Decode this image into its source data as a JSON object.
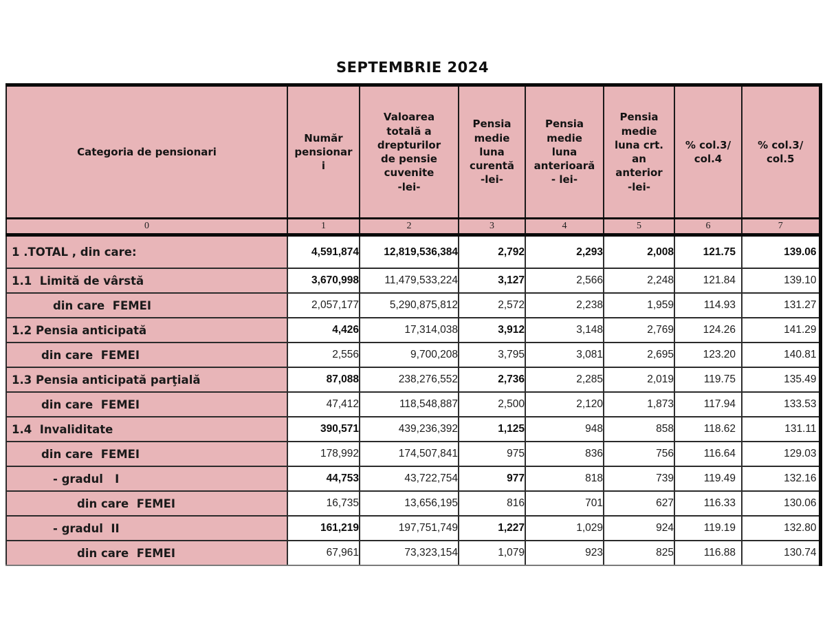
{
  "title": "SEPTEMBRIE 2024",
  "colors": {
    "header_pink": "#e8b5b8",
    "border_black": "#0a0a0a",
    "cell_white": "#ffffff",
    "text": "#141414"
  },
  "table": {
    "header": {
      "col0": "Categoria de pensionari",
      "col1": "Număr\npensionar\ni",
      "col2": "Valoarea\ntotală a\ndrepturilor\nde pensie\ncuvenite\n-lei-",
      "col3": "Pensia\nmedie\nluna\ncurentă\n-lei-",
      "col4": "Pensia\nmedie\nluna\nanterioară\n- lei-",
      "col5": "Pensia\nmedie\nluna crt.\nan\nanterior\n-lei-",
      "col6": "%  col.3/\ncol.4",
      "col7": "%  col.3/\ncol.5"
    },
    "column_numbers": [
      "0",
      "1",
      "2",
      "3",
      "4",
      "5",
      "6",
      "7"
    ],
    "rows": [
      {
        "label": "1 .TOTAL , din care:",
        "indent": 0,
        "bold_all": true,
        "bold_values": [],
        "values": [
          "4,591,874",
          "12,819,536,384",
          "2,792",
          "2,293",
          "2,008",
          "121.75",
          "139.06"
        ]
      },
      {
        "label": "1.1  Limită de vârstă",
        "indent": 0,
        "bold_all": false,
        "bold_values": [
          0,
          2
        ],
        "values": [
          "3,670,998",
          "11,479,533,224",
          "3,127",
          "2,566",
          "2,248",
          "121.84",
          "139.10"
        ]
      },
      {
        "label": "din care  FEMEI",
        "indent": 2,
        "bold_all": false,
        "bold_values": [],
        "values": [
          "2,057,177",
          "5,290,875,812",
          "2,572",
          "2,238",
          "1,959",
          "114.93",
          "131.27"
        ]
      },
      {
        "label": "1.2 Pensia anticipată",
        "indent": 0,
        "bold_all": false,
        "bold_values": [
          0,
          2
        ],
        "values": [
          "4,426",
          "17,314,038",
          "3,912",
          "3,148",
          "2,769",
          "124.26",
          "141.29"
        ]
      },
      {
        "label": "din care  FEMEI",
        "indent": 1,
        "bold_all": false,
        "bold_values": [],
        "values": [
          "2,556",
          "9,700,208",
          "3,795",
          "3,081",
          "2,695",
          "123.20",
          "140.81"
        ]
      },
      {
        "label": "1.3 Pensia anticipată parţială",
        "indent": 0,
        "bold_all": false,
        "bold_values": [
          0,
          2
        ],
        "values": [
          "87,088",
          "238,276,552",
          "2,736",
          "2,285",
          "2,019",
          "119.75",
          "135.49"
        ]
      },
      {
        "label": "din care  FEMEI",
        "indent": 1,
        "bold_all": false,
        "bold_values": [],
        "values": [
          "47,412",
          "118,548,887",
          "2,500",
          "2,120",
          "1,873",
          "117.94",
          "133.53"
        ]
      },
      {
        "label": "1.4  Invaliditate",
        "indent": 0,
        "bold_all": false,
        "bold_values": [
          0,
          2
        ],
        "values": [
          "390,571",
          "439,236,392",
          "1,125",
          "948",
          "858",
          "118.62",
          "131.11"
        ]
      },
      {
        "label": "din care  FEMEI",
        "indent": 1,
        "bold_all": false,
        "bold_values": [],
        "values": [
          "178,992",
          "174,507,841",
          "975",
          "836",
          "756",
          "116.64",
          "129.03"
        ]
      },
      {
        "label": "- gradul   I",
        "indent": 2,
        "bold_all": false,
        "bold_values": [
          0,
          2
        ],
        "values": [
          "44,753",
          "43,722,754",
          "977",
          "818",
          "739",
          "119.49",
          "132.16"
        ]
      },
      {
        "label": "din care  FEMEI",
        "indent": 3,
        "bold_all": false,
        "bold_values": [],
        "values": [
          "16,735",
          "13,656,195",
          "816",
          "701",
          "627",
          "116.33",
          "130.06"
        ]
      },
      {
        "label": "- gradul  II",
        "indent": 2,
        "bold_all": false,
        "bold_values": [
          0,
          2
        ],
        "values": [
          "161,219",
          "197,751,749",
          "1,227",
          "1,029",
          "924",
          "119.19",
          "132.80"
        ]
      },
      {
        "label": "din care  FEMEI",
        "indent": 3,
        "bold_all": false,
        "bold_values": [],
        "values": [
          "67,961",
          "73,323,154",
          "1,079",
          "923",
          "825",
          "116.88",
          "130.74"
        ]
      }
    ]
  }
}
